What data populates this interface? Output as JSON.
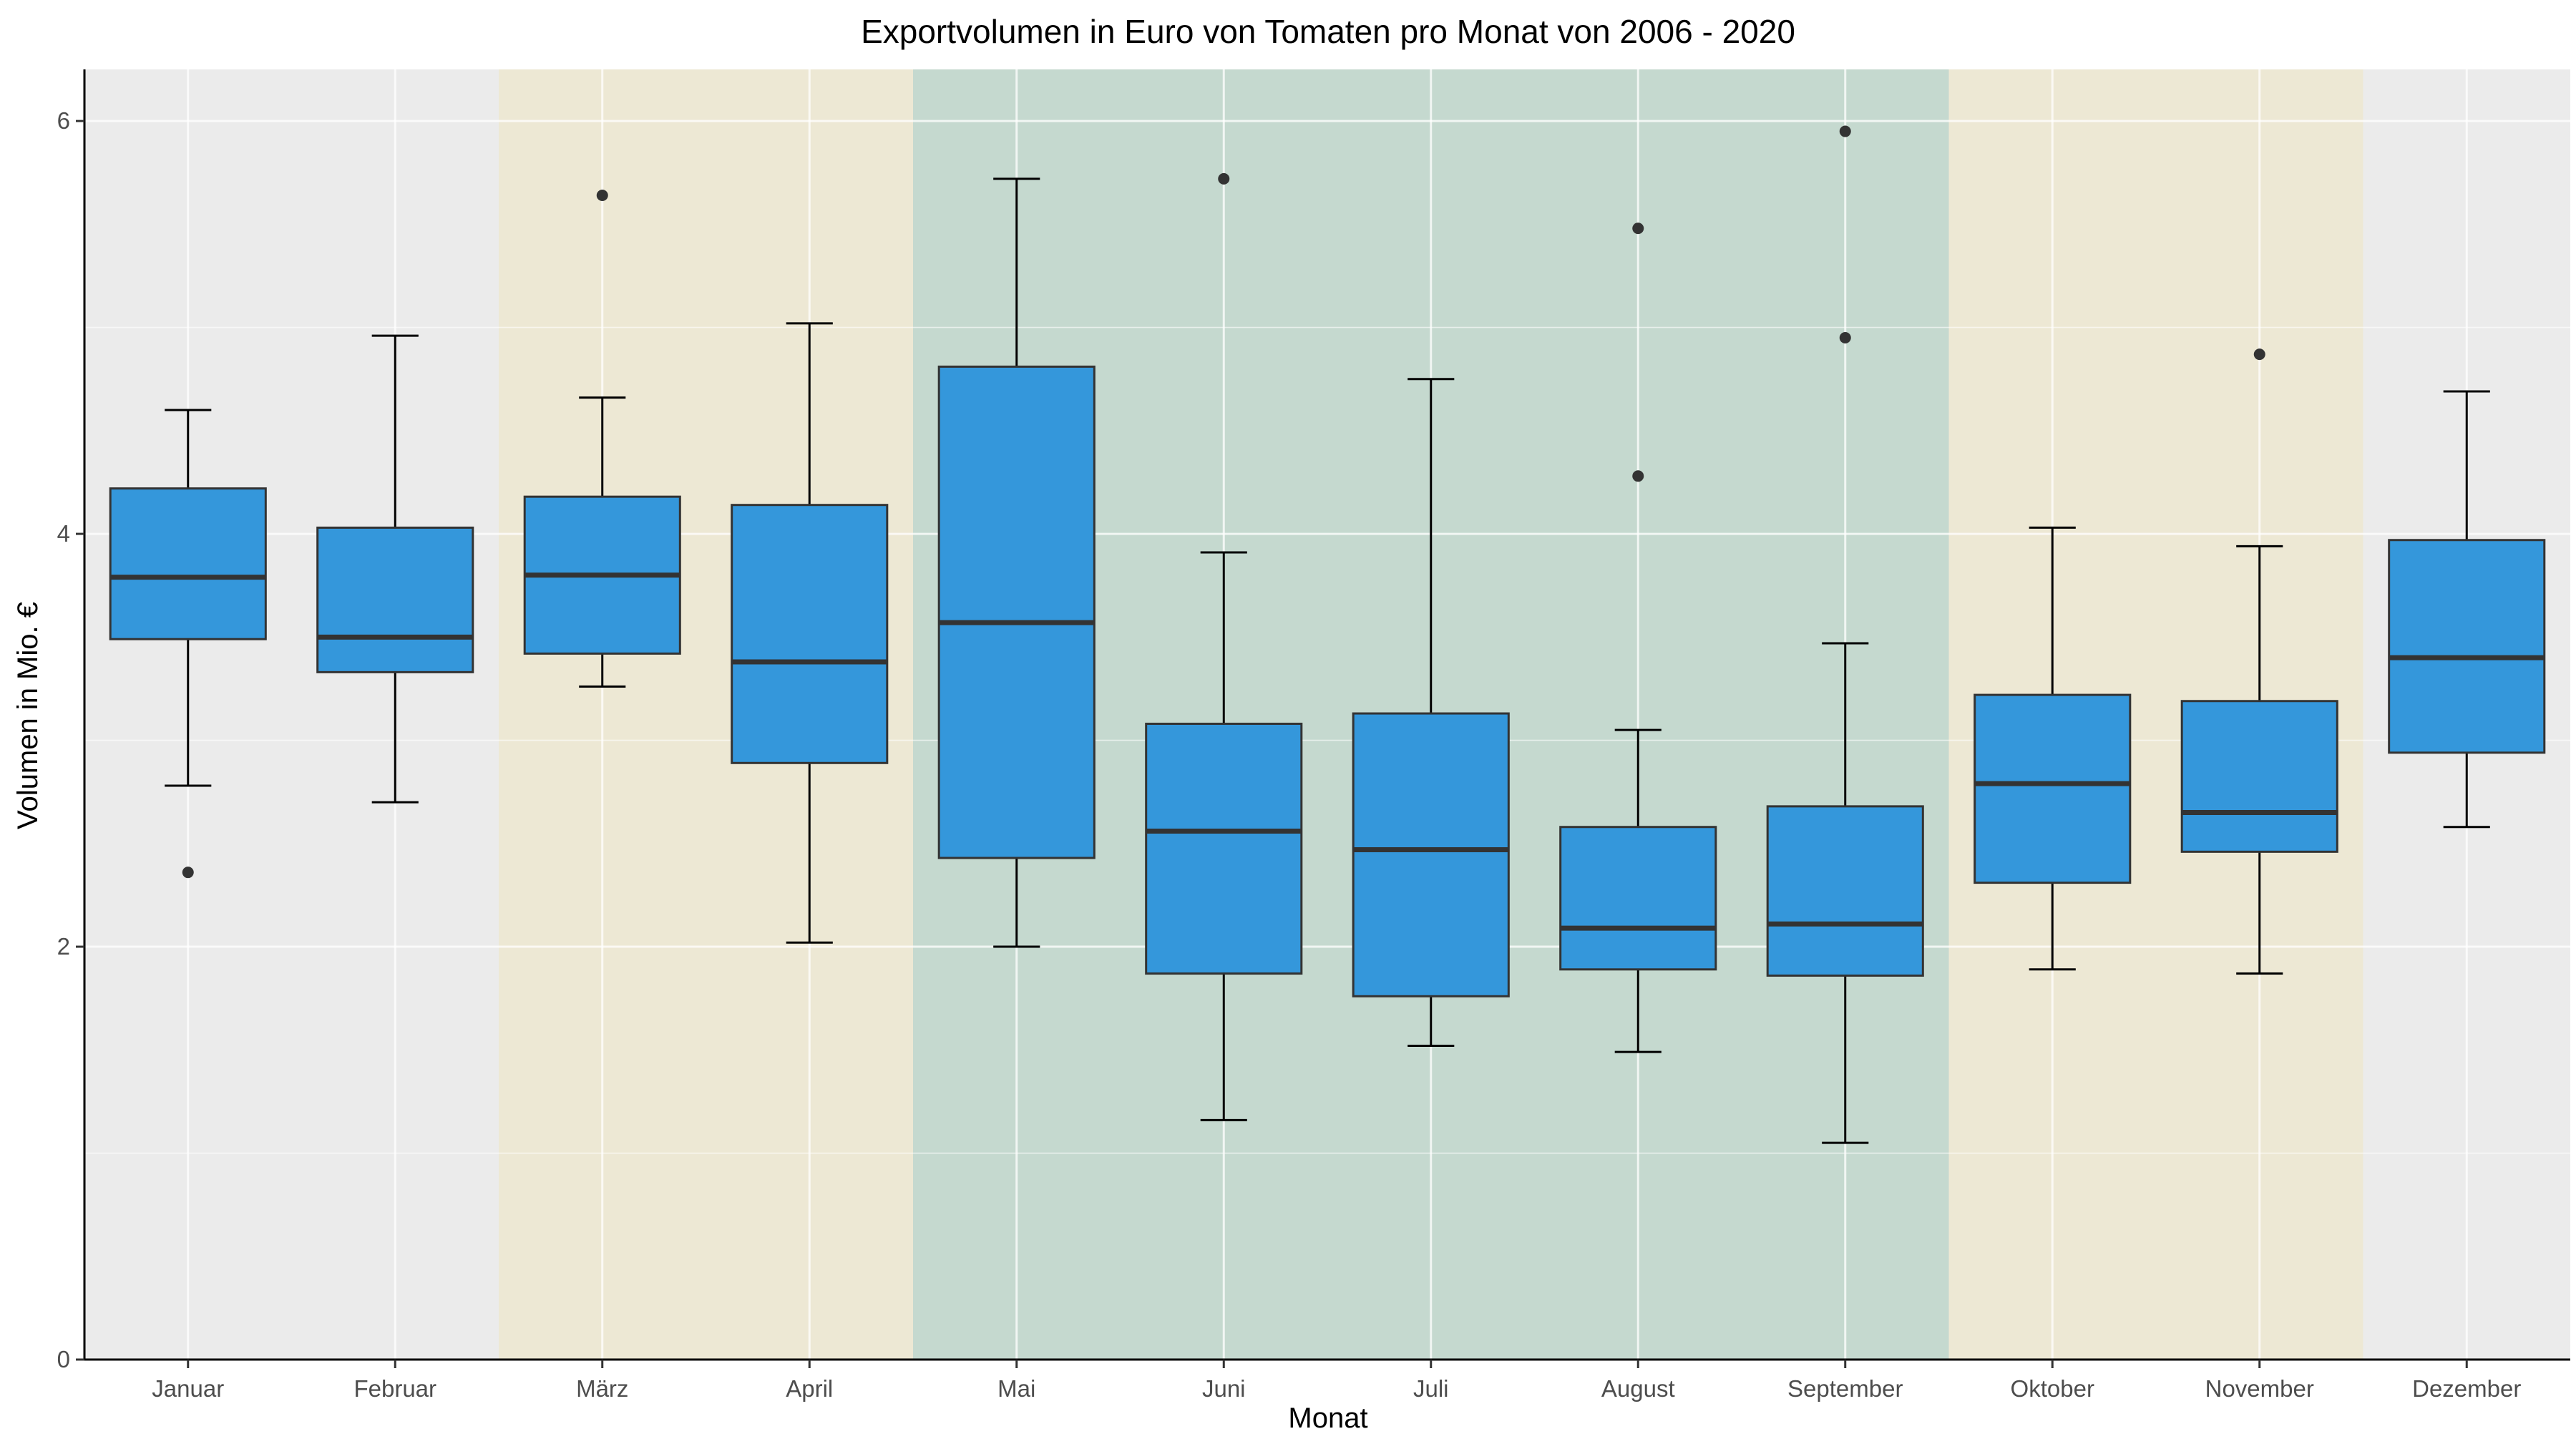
{
  "chart_data": {
    "type": "boxplot",
    "title": "Exportvolumen in Euro von Tomaten pro Monat von 2006 - 2020",
    "xlabel": "Monat",
    "ylabel": "Volumen in Mio. €",
    "ylim": [
      0,
      6.25
    ],
    "yticks": [
      0,
      2,
      4,
      6
    ],
    "grid": true,
    "legend": "none",
    "colors": {
      "box_fill": "#3497db",
      "box_stroke": "#333333",
      "panel_bg": "#ebebeb",
      "band_spring_autumn": "#ede8d3",
      "band_summer": "#c3d8ce",
      "grid": "#ffffff"
    },
    "season_bands": [
      {
        "from": "März",
        "to": "April",
        "color": "#ede8d3"
      },
      {
        "from": "Mai",
        "to": "September",
        "color": "#c3d8ce"
      },
      {
        "from": "Oktober",
        "to": "November",
        "color": "#ede8d3"
      }
    ],
    "categories": [
      "Januar",
      "Februar",
      "März",
      "April",
      "Mai",
      "Juni",
      "Juli",
      "August",
      "September",
      "Oktober",
      "November",
      "Dezember"
    ],
    "boxes": [
      {
        "month": "Januar",
        "whisker_low": 2.78,
        "q1": 3.49,
        "median": 3.79,
        "q3": 4.22,
        "whisker_high": 4.6,
        "outliers": [
          2.36
        ]
      },
      {
        "month": "Februar",
        "whisker_low": 2.7,
        "q1": 3.33,
        "median": 3.5,
        "q3": 4.03,
        "whisker_high": 4.96,
        "outliers": []
      },
      {
        "month": "März",
        "whisker_low": 3.26,
        "q1": 3.42,
        "median": 3.8,
        "q3": 4.18,
        "whisker_high": 4.66,
        "outliers": [
          5.64
        ]
      },
      {
        "month": "April",
        "whisker_low": 2.02,
        "q1": 2.89,
        "median": 3.38,
        "q3": 4.14,
        "whisker_high": 5.02,
        "outliers": []
      },
      {
        "month": "Mai",
        "whisker_low": 2.0,
        "q1": 2.43,
        "median": 3.57,
        "q3": 4.81,
        "whisker_high": 5.72,
        "outliers": []
      },
      {
        "month": "Juni",
        "whisker_low": 1.16,
        "q1": 1.87,
        "median": 2.56,
        "q3": 3.08,
        "whisker_high": 3.91,
        "outliers": [
          5.72
        ]
      },
      {
        "month": "Juli",
        "whisker_low": 1.52,
        "q1": 1.76,
        "median": 2.47,
        "q3": 3.13,
        "whisker_high": 4.75,
        "outliers": []
      },
      {
        "month": "August",
        "whisker_low": 1.49,
        "q1": 1.89,
        "median": 2.09,
        "q3": 2.58,
        "whisker_high": 3.05,
        "outliers": [
          4.28,
          5.48
        ]
      },
      {
        "month": "September",
        "whisker_low": 1.05,
        "q1": 1.86,
        "median": 2.11,
        "q3": 2.68,
        "whisker_high": 3.47,
        "outliers": [
          4.95,
          5.95
        ]
      },
      {
        "month": "Oktober",
        "whisker_low": 1.89,
        "q1": 2.31,
        "median": 2.79,
        "q3": 3.22,
        "whisker_high": 4.03,
        "outliers": []
      },
      {
        "month": "November",
        "whisker_low": 1.87,
        "q1": 2.46,
        "median": 2.65,
        "q3": 3.19,
        "whisker_high": 3.94,
        "outliers": [
          4.87
        ]
      },
      {
        "month": "Dezember",
        "whisker_low": 2.58,
        "q1": 2.94,
        "median": 3.4,
        "q3": 3.97,
        "whisker_high": 4.69,
        "outliers": []
      }
    ]
  }
}
